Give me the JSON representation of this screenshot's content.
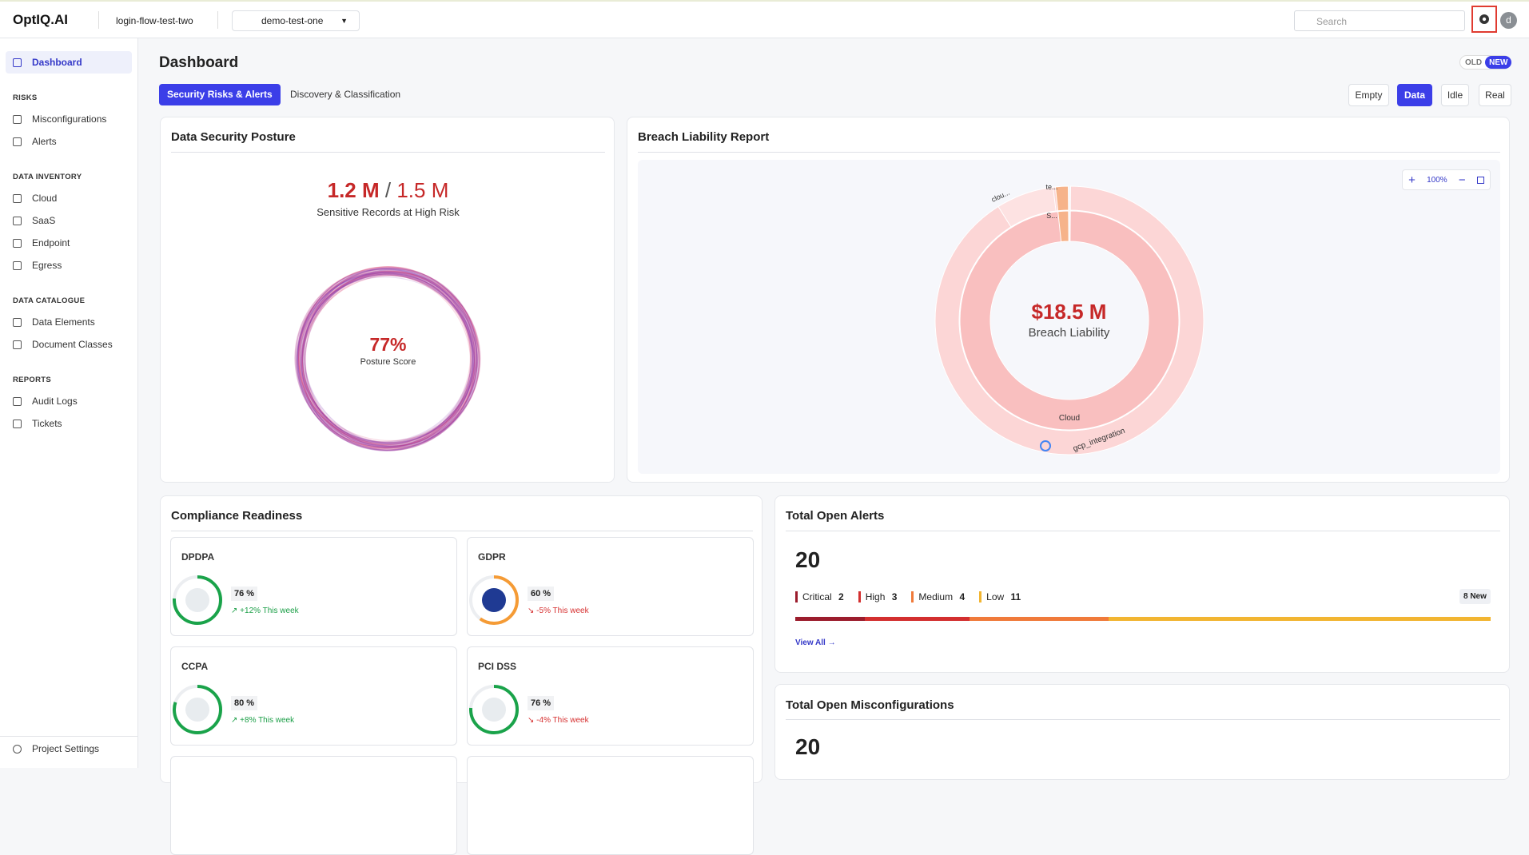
{
  "header": {
    "logo": "OptIQ.AI",
    "org": "login-flow-test-two",
    "project": "demo-test-one",
    "search_placeholder": "Search",
    "avatar": "d"
  },
  "sidebar": {
    "active": "Dashboard",
    "sections": [
      {
        "title": "RISKS",
        "items": [
          "Misconfigurations",
          "Alerts"
        ]
      },
      {
        "title": "DATA INVENTORY",
        "items": [
          "Cloud",
          "SaaS",
          "Endpoint",
          "Egress"
        ]
      },
      {
        "title": "DATA CATALOGUE",
        "items": [
          "Data Elements",
          "Document Classes"
        ]
      },
      {
        "title": "REPORTS",
        "items": [
          "Audit Logs",
          "Tickets"
        ]
      }
    ],
    "footer": "Project Settings"
  },
  "page": {
    "title": "Dashboard",
    "toggle": [
      "OLD",
      "NEW"
    ],
    "tabs": [
      "Security Risks & Alerts",
      "Discovery & Classification"
    ],
    "modes": [
      "Empty",
      "Data",
      "Idle",
      "Real"
    ],
    "active_mode": 1
  },
  "posture": {
    "title": "Data Security Posture",
    "records": "1.2 M",
    "separator": "/",
    "total": "1.5 M",
    "subtitle": "Sensitive Records at High Risk",
    "score": "77%",
    "score_label": "Posture Score"
  },
  "breach": {
    "title": "Breach Liability Report",
    "zoom": "100%",
    "amount": "$18.5 M",
    "label": "Breach Liability",
    "segments": [
      "clou...",
      "te...",
      "S...",
      "Cloud",
      "gcp_integration"
    ]
  },
  "compliance": {
    "title": "Compliance Readiness",
    "cards": [
      {
        "name": "DPDPA",
        "value": 76,
        "label": "76 %",
        "change": "+12% This week",
        "trend": "up",
        "color": "#1aa34a"
      },
      {
        "name": "GDPR",
        "value": 60,
        "label": "60 %",
        "change": "-5% This week",
        "trend": "down",
        "color": "#f59b35"
      },
      {
        "name": "CCPA",
        "value": 80,
        "label": "80 %",
        "change": "+8% This week",
        "trend": "up",
        "color": "#1aa34a"
      },
      {
        "name": "PCI DSS",
        "value": 76,
        "label": "76 %",
        "change": "-4% This week",
        "trend": "down",
        "color": "#1aa34a"
      }
    ]
  },
  "alerts": {
    "title": "Total Open Alerts",
    "total": "20",
    "levels": [
      {
        "name": "Critical",
        "count": 2,
        "color": "#9b1c2c"
      },
      {
        "name": "High",
        "count": 3,
        "color": "#d32f2f"
      },
      {
        "name": "Medium",
        "count": 4,
        "color": "#f07a3a"
      },
      {
        "name": "Low",
        "count": 11,
        "color": "#f2b531"
      }
    ],
    "new": "8 New",
    "view_all": "View All →"
  },
  "misconfigurations": {
    "title": "Total Open Misconfigurations",
    "total": "20"
  }
}
